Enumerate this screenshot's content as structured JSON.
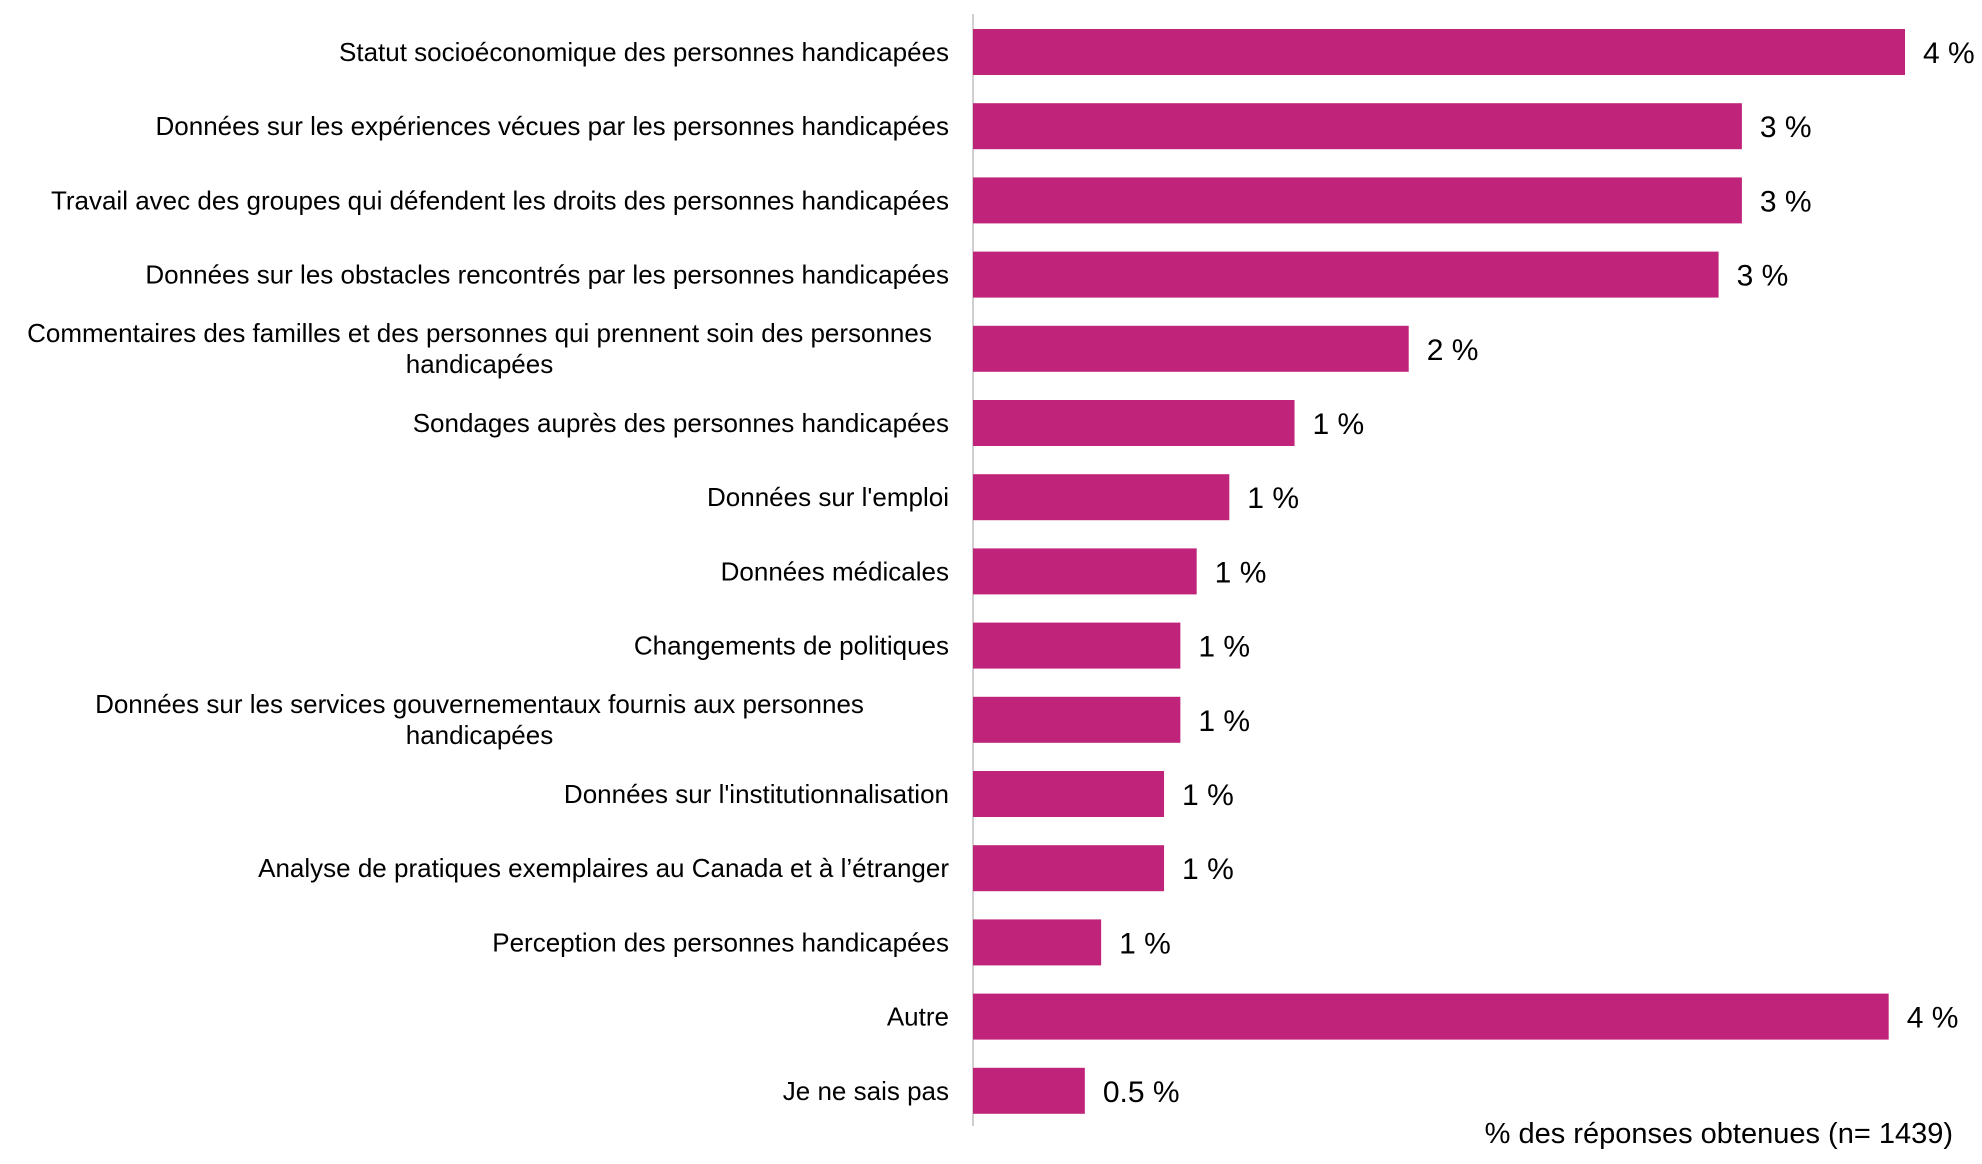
{
  "chart_data": {
    "type": "bar",
    "orientation": "horizontal",
    "categories": [
      "Statut socioéconomique des personnes handicapées",
      "Données sur les expériences vécues par les personnes handicapées",
      "Travail avec des groupes qui défendent les droits des personnes handicapées",
      "Données sur les obstacles rencontrés par les personnes handicapées",
      "Commentaires des familles et des personnes qui prennent soin des personnes handicapées",
      "Sondages auprès des personnes handicapées",
      "Données sur l'emploi",
      "Données médicales",
      "Changements de politiques",
      "Données sur les services gouvernementaux fournis aux personnes handicapées",
      "Données sur l'institutionnalisation",
      "Analyse de pratiques exemplaires au Canada et à l’étranger",
      "Perception des personnes handicapées",
      "Autre",
      "Je ne sais pas"
    ],
    "category_lines": [
      [
        "Statut socioéconomique des personnes handicapées"
      ],
      [
        "Données sur les expériences vécues par les personnes handicapées"
      ],
      [
        "Travail avec des groupes qui défendent les droits des personnes handicapées"
      ],
      [
        "Données sur les obstacles rencontrés par les personnes handicapées"
      ],
      [
        "Commentaires des familles et des personnes qui prennent soin des personnes",
        "handicapées"
      ],
      [
        "Sondages auprès des personnes handicapées"
      ],
      [
        "Données sur l'emploi"
      ],
      [
        "Données médicales"
      ],
      [
        "Changements de politiques"
      ],
      [
        "Données sur les services gouvernementaux fournis aux personnes",
        "handicapées"
      ],
      [
        "Données sur l'institutionnalisation"
      ],
      [
        "Analyse de pratiques exemplaires au Canada et à l’étranger"
      ],
      [
        "Perception des personnes handicapées"
      ],
      [
        "Autre"
      ],
      [
        "Je ne sais pas"
      ]
    ],
    "values": [
      4.0,
      3.3,
      3.3,
      3.2,
      1.87,
      1.38,
      1.1,
      0.96,
      0.89,
      0.89,
      0.82,
      0.82,
      0.55,
      3.93,
      0.48
    ],
    "value_labels": [
      "4 %",
      "3 %",
      "3 %",
      "3 %",
      "2 %",
      "1 %",
      "1 %",
      "1 %",
      "1 %",
      "1 %",
      "1 %",
      "1 %",
      "1 %",
      "4 %",
      "0.5 %"
    ],
    "xlabel": "% des réponses obtenues (n= 1439)",
    "title": "",
    "xlim": [
      0,
      4.0
    ],
    "grid": false,
    "legend": "none",
    "bar_color": "#C0247A",
    "axis_color": "#D0D0D0"
  }
}
